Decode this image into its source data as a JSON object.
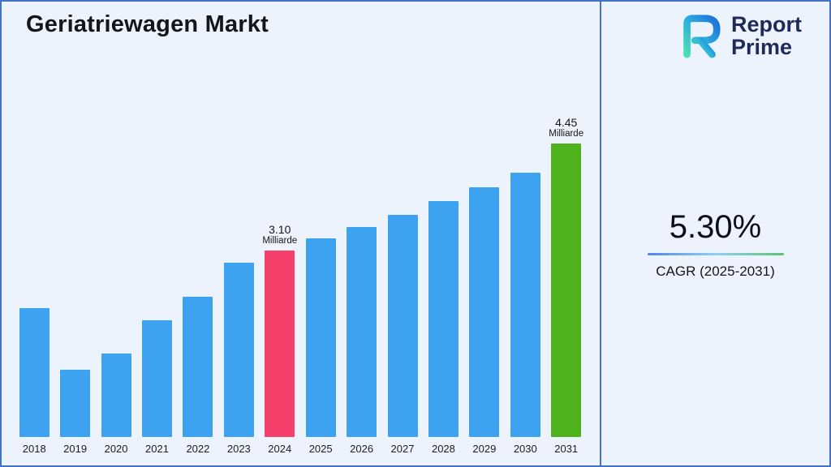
{
  "title": "Geriatriewagen Markt",
  "chart_data": {
    "type": "bar",
    "title": "Geriatriewagen Markt",
    "categories": [
      "2018",
      "2019",
      "2020",
      "2021",
      "2022",
      "2023",
      "2024",
      "2025",
      "2026",
      "2027",
      "2028",
      "2029",
      "2030",
      "2031"
    ],
    "values": [
      2.38,
      1.6,
      1.8,
      2.22,
      2.52,
      2.95,
      3.1,
      3.25,
      3.4,
      3.55,
      3.72,
      3.9,
      4.08,
      4.45
    ],
    "unit": "Milliarde",
    "ylim": [
      0.75,
      4.45
    ],
    "grid": false,
    "legend": "none",
    "colors": {
      "default_bar": "#3da2f0",
      "highlight_2024": "#f5406b",
      "highlight_2031": "#4db21c"
    },
    "annotations": [
      {
        "category": "2024",
        "value_label": "3.10",
        "unit_label": "Milliarde"
      },
      {
        "category": "2031",
        "value_label": "4.45",
        "unit_label": "Milliarde"
      }
    ]
  },
  "right_panel": {
    "cagr_value": "5.30%",
    "cagr_label": "CAGR (2025-2031)",
    "logo_line1": "Report",
    "logo_line2": "Prime"
  }
}
